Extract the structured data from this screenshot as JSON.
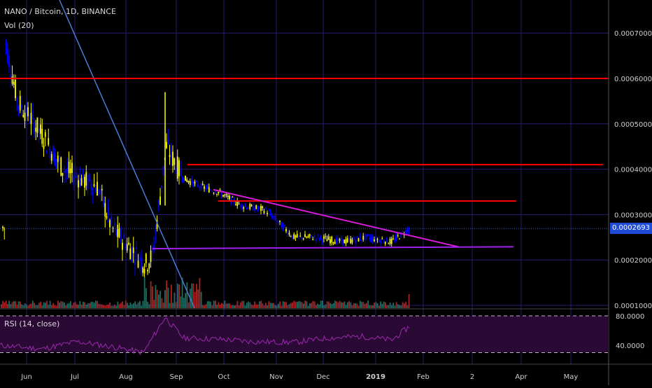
{
  "header": {
    "symbol_line": "NANO / Bitcoin, 1D, BINANCE",
    "volume_line": "Vol (20)",
    "rsi_line": "RSI (14, close)"
  },
  "last_price_label": "0.0002693",
  "colors": {
    "background": "#000000",
    "grid": "#2a1870",
    "up_candle": "#ffff00",
    "down_candle": "#0000ff",
    "vol_up": "#1f6b5e",
    "vol_down": "#a82424",
    "resistance_line": "#ff0000",
    "triangle_top": "#d81bd8",
    "triangle_bottom": "#a020f0",
    "trend_line": "#4a7bd6",
    "rsi_line": "#9c27b0",
    "rsi_band": "#2a0a35",
    "axis_text": "#cfcfcf"
  },
  "chart_data": {
    "type": "candlestick",
    "xaxis_ticks": [
      "Jun",
      "Jul",
      "Aug",
      "Sep",
      "Oct",
      "Nov",
      "Dec",
      "2019",
      "Feb",
      "2",
      "Apr",
      "May"
    ],
    "price_axis_ticks": [
      "0.0007000",
      "0.0006000",
      "0.0005000",
      "0.0004000",
      "0.0003000",
      "0.0002000",
      "0.0001000"
    ],
    "price_axis_values": [
      0.0007,
      0.0006,
      0.0005,
      0.0004,
      0.0003,
      0.0002,
      0.0001
    ],
    "rsi_axis_ticks": [
      "80.0000",
      "40.0000"
    ],
    "rsi_axis_values": [
      80,
      40
    ],
    "price_anchors": [
      [
        "Jun",
        0.00068
      ],
      [
        "Jun",
        0.00055
      ],
      [
        "Jun",
        0.0005
      ],
      [
        "Jul",
        0.0004
      ],
      [
        "Jul",
        0.00038
      ],
      [
        "Jul",
        0.00036
      ],
      [
        "Aug",
        0.00027
      ],
      [
        "Aug",
        0.00019
      ],
      [
        "Aug",
        0.00021
      ],
      [
        "Sep",
        0.00045
      ],
      [
        "Sep",
        0.00038
      ],
      [
        "Sep",
        0.00036
      ],
      [
        "Oct",
        0.00035
      ],
      [
        "Oct",
        0.00032
      ],
      [
        "Nov",
        0.00031
      ],
      [
        "Nov",
        0.00025
      ],
      [
        "Dec",
        0.00025
      ],
      [
        "Dec",
        0.00024
      ],
      [
        "2019",
        0.00025
      ],
      [
        "2019",
        0.00024
      ],
      [
        "Feb",
        0.00027
      ]
    ],
    "last_close": 0.0002693,
    "horizontal_levels": [
      0.0006,
      0.00041,
      0.00033
    ],
    "triangle": {
      "upper": [
        [
          0.000355,
          "Oct"
        ],
        [
          0.00023,
          "Feb"
        ]
      ],
      "lower": 0.000226
    },
    "rsi_last": 66
  }
}
